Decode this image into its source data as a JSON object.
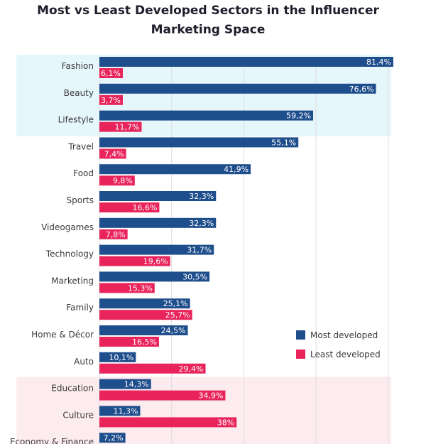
{
  "title_line1": "Most vs Least Developed Sectors in the Influencer",
  "title_line2": "Marketing Space",
  "colors": {
    "most": "#1f4e8c",
    "least": "#e8245b",
    "highlight_top": "#e6f7fc",
    "highlight_bottom": "#fdecef",
    "grid": "#dcdcdc"
  },
  "chart_data": {
    "type": "bar",
    "orientation": "horizontal",
    "title": "Most vs Least Developed Sectors in the Influencer Marketing Space",
    "xlabel": "",
    "ylabel": "",
    "xlim": [
      0,
      82
    ],
    "grid": true,
    "legend_position": "bottom-right",
    "categories": [
      "Fashion",
      "Beauty",
      "Lifestyle",
      "Travel",
      "Food",
      "Sports",
      "Videogames",
      "Technology",
      "Marketing",
      "Family",
      "Home & Décor",
      "Auto",
      "Education",
      "Culture",
      "Economy & Finance"
    ],
    "series": [
      {
        "name": "Most developed",
        "color": "#1f4e8c",
        "values": [
          81.4,
          76.6,
          59.2,
          55.1,
          41.9,
          32.3,
          32.3,
          31.7,
          30.5,
          25.1,
          24.5,
          10.1,
          14.3,
          11.3,
          7.2
        ],
        "labels": [
          "81,4%",
          "76,6%",
          "59,2%",
          "55,1%",
          "41,9%",
          "32,3%",
          "32,3%",
          "31,7%",
          "30,5%",
          "25,1%",
          "24,5%",
          "10,1%",
          "14,3%",
          "11,3%",
          "7,2%"
        ]
      },
      {
        "name": "Least developed",
        "color": "#e8245b",
        "values": [
          6.1,
          3.7,
          11.7,
          7.4,
          9.8,
          16.6,
          7.8,
          19.6,
          15.3,
          25.7,
          16.5,
          29.4,
          34.9,
          38,
          null
        ],
        "labels": [
          "6,1%",
          "3,7%",
          "11,7%",
          "7,4%",
          "9,8%",
          "16,6%",
          "7,8%",
          "19,6%",
          "15,3%",
          "25,7%",
          "16,5%",
          "29,4%",
          "34,9%",
          "38%",
          ""
        ]
      }
    ],
    "highlight_groups": [
      {
        "categories": [
          "Fashion",
          "Beauty",
          "Lifestyle"
        ],
        "color": "#e6f7fc"
      },
      {
        "categories": [
          "Education",
          "Culture",
          "Economy & Finance"
        ],
        "color": "#fdecef"
      }
    ]
  }
}
